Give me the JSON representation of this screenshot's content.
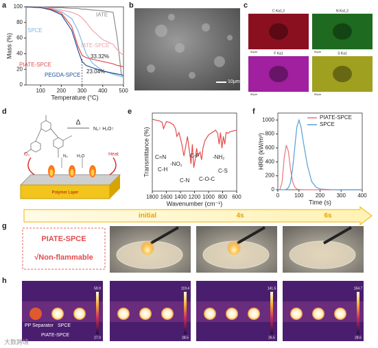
{
  "chart_data": [
    {
      "type": "line",
      "xlabel": "Temperature (°C)",
      "ylabel": "Mass (%)",
      "x": [
        30,
        100,
        150,
        200,
        250,
        280,
        300,
        320,
        350,
        400,
        450,
        470,
        490,
        500
      ],
      "xlim": [
        30,
        500
      ],
      "xticks": [
        100,
        200,
        300,
        400,
        500
      ],
      "ylim": [
        0,
        100
      ],
      "yticks": [
        0,
        20,
        40,
        60,
        80,
        100
      ],
      "series": [
        {
          "name": "IATE",
          "color": "#8c8c8c",
          "values": [
            100,
            100,
            99,
            99,
            98,
            98,
            97,
            97,
            96,
            95,
            93,
            60,
            13,
            12
          ]
        },
        {
          "name": "IATE-SPCE",
          "color": "#f2a3ab",
          "values": [
            100,
            99,
            98,
            96,
            93,
            90,
            86,
            80,
            70,
            58,
            52,
            45,
            40,
            38
          ]
        },
        {
          "name": "SPCE",
          "color": "#7db6e0",
          "values": [
            100,
            99,
            97,
            94,
            85,
            70,
            55,
            40,
            28,
            18,
            14,
            12,
            11,
            10
          ]
        },
        {
          "name": "PIATE-SPCE",
          "color": "#e24a4a",
          "values": [
            100,
            99,
            97,
            92,
            75,
            50,
            38,
            35,
            33,
            30,
            27,
            25,
            24,
            23
          ]
        },
        {
          "name": "PEGDA-SPCE",
          "color": "#1f4e9c",
          "values": [
            100,
            99,
            96,
            90,
            70,
            45,
            30,
            25,
            22,
            18,
            15,
            14,
            13,
            12
          ]
        }
      ],
      "annotations": [
        "33.32%",
        "23.04%"
      ]
    },
    {
      "type": "line",
      "xlabel": "Wavenumber (cm⁻¹)",
      "ylabel": "Transmittance (%)",
      "x": [
        1800,
        1750,
        1700,
        1660,
        1640,
        1600,
        1550,
        1500,
        1470,
        1450,
        1420,
        1380,
        1350,
        1330,
        1300,
        1270,
        1250,
        1230,
        1210,
        1190,
        1170,
        1150,
        1120,
        1100,
        1080,
        1050,
        1000,
        950,
        900,
        870,
        850,
        830,
        810,
        790,
        770,
        750,
        720,
        700,
        650,
        600
      ],
      "xlim": [
        1800,
        600
      ],
      "xticks": [
        1800,
        1600,
        1400,
        1200,
        1000,
        800,
        600
      ],
      "ylim": [
        0,
        100
      ],
      "yticks": [],
      "series": [
        {
          "name": "PIATE-SPCE",
          "color": "#e24a4a",
          "values": [
            92,
            91,
            90,
            88,
            80,
            89,
            88,
            85,
            80,
            70,
            75,
            60,
            45,
            55,
            70,
            50,
            35,
            60,
            30,
            40,
            55,
            45,
            50,
            40,
            55,
            65,
            72,
            75,
            78,
            74,
            60,
            75,
            55,
            70,
            60,
            75,
            74,
            76,
            77,
            78
          ]
        }
      ],
      "annotations": [
        "C=N",
        "C-H",
        "-NO₂",
        "C-F",
        "C-N",
        "C-O-C",
        "-NH₂",
        "C-S"
      ]
    },
    {
      "type": "line",
      "xlabel": "Time (s)",
      "ylabel": "HRR (kW/m²)",
      "x": [
        0,
        10,
        20,
        30,
        40,
        50,
        60,
        70,
        80,
        90,
        100,
        110,
        120,
        140,
        160,
        180,
        200,
        250,
        300,
        400
      ],
      "xlim": [
        0,
        400
      ],
      "xticks": [
        0,
        100,
        200,
        300,
        400
      ],
      "ylim": [
        0,
        1100
      ],
      "yticks": [
        0,
        200,
        400,
        600,
        800,
        1000
      ],
      "legend": "upper right",
      "series": [
        {
          "name": "PIATE-SPCE",
          "color": "#e8767a",
          "values": [
            0,
            5,
            100,
            450,
            640,
            550,
            300,
            120,
            40,
            10,
            5,
            3,
            2,
            0,
            0,
            0,
            0,
            0,
            0,
            0
          ]
        },
        {
          "name": "SPCE",
          "color": "#4f9fd6",
          "values": [
            0,
            0,
            0,
            0,
            5,
            30,
            100,
            300,
            600,
            900,
            1000,
            900,
            700,
            350,
            120,
            40,
            10,
            2,
            0,
            0
          ]
        }
      ]
    }
  ],
  "panel_labels": [
    "a",
    "b",
    "c",
    "d",
    "e",
    "f",
    "g",
    "h"
  ],
  "sem": {
    "scale_bar": "10μm"
  },
  "eds": [
    {
      "label": "C Ka1,2",
      "scale": "50μm"
    },
    {
      "label": "N Ka1,2",
      "scale": "50μm"
    },
    {
      "label": "F Ka1",
      "scale": "50μm"
    },
    {
      "label": "S Ka1",
      "scale": "50μm"
    }
  ],
  "diagram": {
    "delta": "Δ",
    "gases": "N₂↑ H₂O↑",
    "o2": "O₂",
    "heat": "Heat",
    "n2": "N₂",
    "h2o": "H₂O",
    "layer": "Polymer Layer"
  },
  "timeline": [
    "initial",
    "4s",
    "6s"
  ],
  "flammability": {
    "sample": "PIATE-SPCE",
    "claim": "√Non-flammable"
  },
  "thermal": {
    "labels": [
      "PP Separator",
      "SPCE",
      "PIATE-SPCE"
    ],
    "scales": [
      {
        "max": "59.9",
        "min": "27.0"
      },
      {
        "max": "119.4",
        "min": "28.5"
      },
      {
        "max": "141.5",
        "min": "26.5"
      },
      {
        "max": "154.7",
        "min": "28.6"
      }
    ]
  },
  "watermark": "大数跨境"
}
